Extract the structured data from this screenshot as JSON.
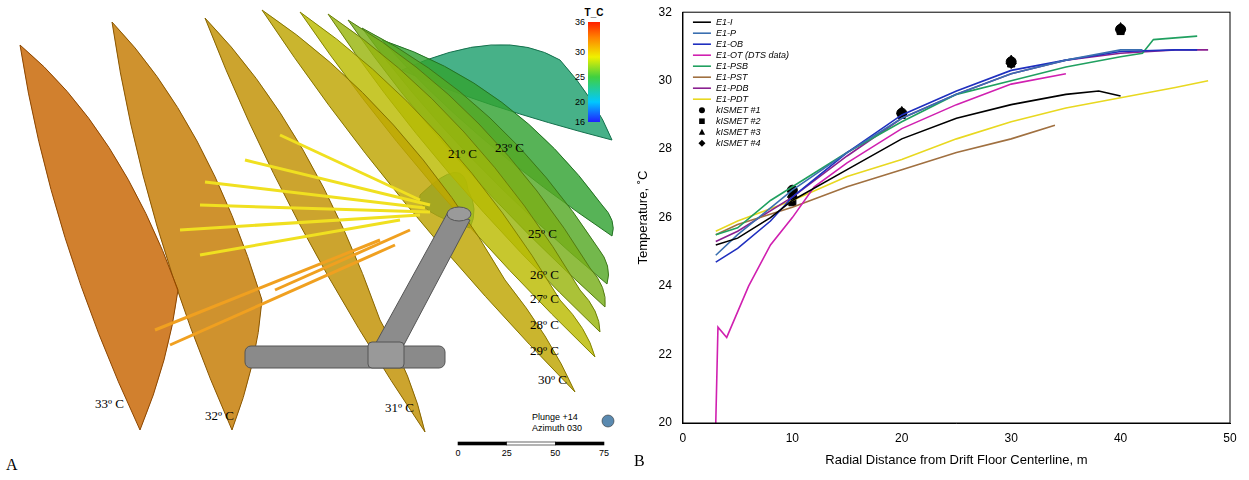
{
  "panel_a": {
    "letter": "A",
    "colorbar": {
      "title": "T_C",
      "range": [
        16,
        36
      ],
      "ticks": [
        16,
        20,
        25,
        30,
        36
      ]
    },
    "isotherms": [
      {
        "value": 33,
        "label": "33º C"
      },
      {
        "value": 32,
        "label": "32º C"
      },
      {
        "value": 31,
        "label": "31º C"
      },
      {
        "value": 30,
        "label": "30º C"
      },
      {
        "value": 29,
        "label": "29º C"
      },
      {
        "value": 28,
        "label": "28º C"
      },
      {
        "value": 27,
        "label": "27º C"
      },
      {
        "value": 26,
        "label": "26º C"
      },
      {
        "value": 25,
        "label": "25º C"
      },
      {
        "value": 23,
        "label": "23º C"
      },
      {
        "value": 21,
        "label": "21º C"
      }
    ],
    "view": [
      "Plunge +14",
      "Azimuth 030"
    ],
    "scale_bar": [
      0,
      25,
      50,
      75
    ]
  },
  "panel_b": {
    "letter": "B"
  },
  "chart_data": {
    "type": "line",
    "x_label": "Radial Distance from Drift Floor Centerline, m",
    "y_label": "Temperature, ˚C",
    "xlim": [
      0,
      50
    ],
    "xticks": [
      0,
      10,
      20,
      30,
      40,
      50
    ],
    "ylim": [
      20,
      32
    ],
    "yticks": [
      20,
      22,
      24,
      26,
      28,
      30,
      32
    ],
    "grid": false,
    "legend": "upper left",
    "series": [
      {
        "name": "E1-I",
        "type": "line",
        "color": "#000000",
        "line_style": "solid",
        "x": [
          3,
          5,
          8,
          10,
          15,
          20,
          25,
          30,
          35,
          38,
          40
        ],
        "values": [
          25.2,
          25.4,
          26.0,
          26.5,
          27.4,
          28.3,
          28.9,
          29.3,
          29.6,
          29.7,
          29.55
        ]
      },
      {
        "name": "E1-P",
        "type": "line",
        "color": "#3a6fb0",
        "line_style": "solid",
        "x": [
          3,
          5,
          10,
          15,
          20,
          25,
          30,
          35,
          40,
          42
        ],
        "values": [
          24.9,
          25.5,
          26.8,
          27.9,
          28.9,
          29.6,
          30.2,
          30.6,
          30.9,
          30.9
        ]
      },
      {
        "name": "E1-OB",
        "type": "line",
        "color": "#1f2fbf",
        "line_style": "solid",
        "x": [
          3,
          5,
          8,
          10,
          15,
          20,
          25,
          30,
          35,
          40,
          45,
          47
        ],
        "values": [
          24.7,
          25.1,
          25.9,
          26.6,
          27.9,
          29.0,
          29.7,
          30.3,
          30.6,
          30.85,
          30.9,
          30.9
        ]
      },
      {
        "name": "E1-OT (DTS data)",
        "type": "line",
        "color": "#d020b0",
        "line_style": "solid",
        "x": [
          3,
          3.2,
          4,
          6,
          8,
          10,
          12,
          15,
          20,
          25,
          30,
          35
        ],
        "values": [
          20.0,
          22.8,
          22.5,
          24.0,
          25.2,
          26.0,
          26.9,
          27.6,
          28.6,
          29.3,
          29.9,
          30.2
        ]
      },
      {
        "name": "E1-PSB",
        "type": "line",
        "color": "#20a060",
        "line_style": "solid",
        "x": [
          3,
          5,
          8,
          10,
          15,
          20,
          25,
          30,
          35,
          40,
          42,
          43,
          47
        ],
        "values": [
          25.5,
          25.7,
          26.5,
          26.9,
          27.9,
          28.8,
          29.6,
          30.0,
          30.4,
          30.7,
          30.8,
          31.2,
          31.3
        ]
      },
      {
        "name": "E1-PST",
        "type": "line",
        "color": "#a07040",
        "line_style": "solid",
        "x": [
          3,
          5,
          10,
          15,
          20,
          25,
          30,
          34
        ],
        "values": [
          25.5,
          25.8,
          26.3,
          26.9,
          27.4,
          27.9,
          28.3,
          28.7
        ]
      },
      {
        "name": "E1-PDB",
        "type": "line",
        "color": "#8a2090",
        "line_style": "solid",
        "x": [
          3,
          5,
          10,
          15,
          20,
          25,
          30,
          35,
          40,
          45,
          48
        ],
        "values": [
          25.3,
          25.6,
          26.6,
          27.8,
          28.9,
          29.6,
          30.2,
          30.6,
          30.8,
          30.9,
          30.9
        ]
      },
      {
        "name": "E1-PDT",
        "type": "line",
        "color": "#e8d820",
        "line_style": "solid",
        "x": [
          3,
          5,
          10,
          15,
          20,
          25,
          30,
          35,
          40,
          45,
          48
        ],
        "values": [
          25.6,
          25.9,
          26.5,
          27.2,
          27.7,
          28.3,
          28.8,
          29.2,
          29.5,
          29.8,
          30.0
        ]
      },
      {
        "name": "kISMET #1",
        "type": "scatter",
        "color": "#000000",
        "marker": "circle",
        "x": [
          10,
          20,
          30,
          40
        ],
        "values": [
          26.8,
          29.05,
          30.55,
          31.5
        ]
      },
      {
        "name": "kISMET #2",
        "type": "scatter",
        "color": "#000000",
        "marker": "rect",
        "x": [
          10,
          20,
          30,
          40
        ],
        "values": [
          26.45,
          29.0,
          30.5,
          31.45
        ]
      },
      {
        "name": "kISMET #3",
        "type": "scatter",
        "color": "#000000",
        "marker": "triangle",
        "x": [
          10,
          20,
          30,
          40
        ],
        "values": [
          26.7,
          29.1,
          30.6,
          31.55
        ]
      },
      {
        "name": "kISMET #4",
        "type": "scatter",
        "color": "#000000",
        "marker": "rectRot",
        "x": [
          10,
          20,
          30,
          40
        ],
        "values": [
          26.6,
          29.05,
          30.5,
          31.5
        ]
      }
    ]
  }
}
